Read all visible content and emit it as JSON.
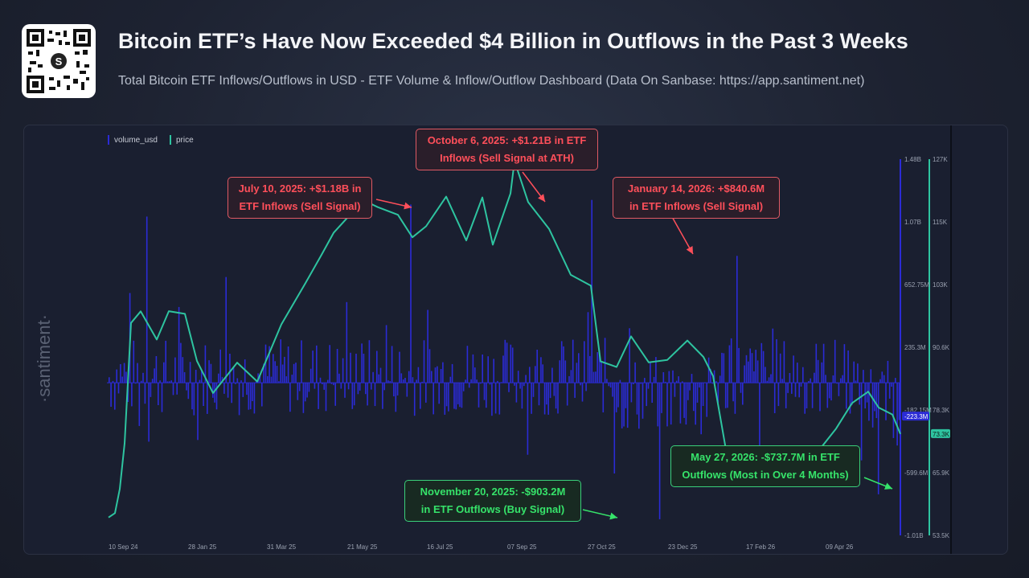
{
  "header": {
    "title": "Bitcoin ETF’s Have Now Exceeded $4 Billion in Outflows in the Past 3 Weeks",
    "subtitle": "Total Bitcoin ETF Inflows/Outflows in USD - ETF Volume & Inflow/Outflow Dashboard (Data On Sanbase: https://app.santiment.net)"
  },
  "brand": {
    "watermark": "·santiment·",
    "qr_center": "S"
  },
  "colors": {
    "volume": "#2b2bd6",
    "price": "#2ec4a0",
    "inflow_callout": "#ff4f5a",
    "outflow_callout": "#36e36a"
  },
  "chart_data": {
    "type": "bar+line",
    "series": [
      {
        "name": "volume_usd",
        "type": "bar",
        "axis": "left-scale",
        "unit": "USD"
      },
      {
        "name": "price",
        "type": "line",
        "axis": "right-scale",
        "unit": "USD"
      }
    ],
    "x_ticks": [
      "10 Sep 24",
      "28 Jan 25",
      "31 Mar 25",
      "21 May 25",
      "16 Jul 25",
      "07 Sep 25",
      "27 Oct 25",
      "23 Dec 25",
      "17 Feb 26",
      "09 Apr 26"
    ],
    "volume_axis": {
      "ticks": [
        "1.48B",
        "1.07B",
        "652.75M",
        "235.3M",
        "-182.15M",
        "-599.6M",
        "-1.01B"
      ],
      "range": [
        -1010000000,
        1480000000
      ],
      "current_label": "-223.3M"
    },
    "price_axis": {
      "ticks": [
        "127K",
        "115K",
        "103K",
        "90.6K",
        "78.3K",
        "65.9K",
        "53.5K"
      ],
      "range": [
        53500,
        127000
      ],
      "current_label": "73.3K"
    },
    "price_key_points": [
      {
        "x": "10 Sep 24",
        "y": 57000
      },
      {
        "x": "Nov 24",
        "y": 97000
      },
      {
        "x": "Dec 24",
        "y": 98000
      },
      {
        "x": "28 Jan 25",
        "y": 95000
      },
      {
        "x": "31 Mar 25",
        "y": 83000
      },
      {
        "x": "21 May 25",
        "y": 108000
      },
      {
        "x": "10 Jul 25",
        "y": 116000
      },
      {
        "x": "16 Jul 25",
        "y": 119000
      },
      {
        "x": "07 Sep 25",
        "y": 111000
      },
      {
        "x": "06 Oct 25",
        "y": 126000
      },
      {
        "x": "27 Oct 25",
        "y": 110000
      },
      {
        "x": "20 Nov 25",
        "y": 86000
      },
      {
        "x": "23 Dec 25",
        "y": 88000
      },
      {
        "x": "17 Feb 26",
        "y": 68000
      },
      {
        "x": "09 Apr 26",
        "y": 72000
      },
      {
        "x": "May 26",
        "y": 79000
      },
      {
        "x": "27 May 26",
        "y": 73300
      }
    ],
    "volume_key_points": [
      {
        "x": "10 Jul 25",
        "y": 1180000000
      },
      {
        "x": "06 Oct 25",
        "y": 1210000000
      },
      {
        "x": "20 Nov 25",
        "y": -903200000
      },
      {
        "x": "14 Jan 26",
        "y": 840600000
      },
      {
        "x": "27 May 26",
        "y": -737700000
      }
    ]
  },
  "legend": {
    "volume": "volume_usd",
    "price": "price"
  },
  "callouts": {
    "jul": {
      "line1": "July 10, 2025: +$1.18B in",
      "line2": "ETF Inflows (Sell Signal)"
    },
    "oct": {
      "line1": "October 6, 2025: +$1.21B in ETF",
      "line2": "Inflows (Sell Signal at ATH)"
    },
    "jan": {
      "line1": "January 14, 2026: +$840.6M",
      "line2": "in ETF Inflows (Sell Signal)"
    },
    "nov": {
      "line1": "November 20, 2025: -$903.2M",
      "line2": "in ETF Outflows (Buy Signal)"
    },
    "may": {
      "line1": "May 27, 2026: -$737.7M in ETF",
      "line2": "Outflows (Most in Over 4 Months)"
    }
  }
}
